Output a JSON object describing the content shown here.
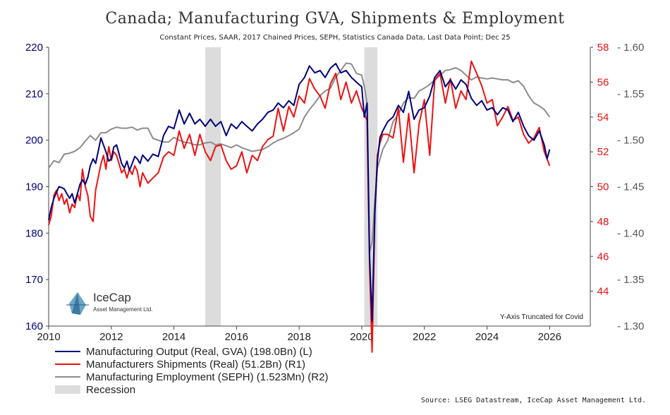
{
  "chart_data": {
    "type": "line",
    "title": "Canada; Manufacturing GVA, Shipments & Employment",
    "subtitle": "Constant Prices, SAAR, 2017 Chained Prices, SEPH, Statistics Canada Data, Last Data Point; Dec 25",
    "annotation": "Y-Axis Truncated for Covid",
    "source": "Source: LSEG Datastream, IceCap Asset Management Ltd.",
    "logo": {
      "name": "IceCap",
      "tagline": "Asset Management Ltd."
    },
    "x_range": [
      2010,
      2027.3
    ],
    "x_ticks": [
      "2010",
      "2012",
      "2014",
      "2016",
      "2018",
      "2020",
      "2022",
      "2024",
      "2026"
    ],
    "axes": {
      "left": {
        "range": [
          160,
          220
        ],
        "ticks": [
          "160",
          "170",
          "180",
          "190",
          "200",
          "210",
          "220"
        ]
      },
      "right1": {
        "range": [
          42,
          58
        ],
        "ticks": [
          "44",
          "46",
          "48",
          "50",
          "52",
          "54",
          "56",
          "58"
        ]
      },
      "right2": {
        "range": [
          1.3,
          1.6
        ],
        "ticks": [
          "- 1.30",
          "- 1.35",
          "- 1.40",
          "- 1.45",
          "- 1.50",
          "- 1.55",
          "- 1.60"
        ]
      }
    },
    "recessions": [
      [
        2015.0,
        2015.5
      ],
      [
        2020.08,
        2020.5
      ]
    ],
    "colors": {
      "output": "#00007a",
      "shipments": "#ee1111",
      "employment": "#8c8c8c",
      "recession": "#dcdcdc"
    },
    "legend": [
      "Manufacturing Output (Real, GVA) (198.0Bn) (L)",
      "Manufacturers Shipments (Real) (51.2Bn) (R1)",
      "Manufacturing Employment (SEPH) (1.523Mn) (R2)",
      "Recession"
    ],
    "series": [
      {
        "name": "Manufacturing Output (Real, GVA)",
        "axis": "left",
        "x": [
          2010.0,
          2010.08,
          2010.17,
          2010.25,
          2010.33,
          2010.42,
          2010.5,
          2010.58,
          2010.67,
          2010.75,
          2010.83,
          2010.92,
          2011.0,
          2011.08,
          2011.17,
          2011.25,
          2011.33,
          2011.42,
          2011.5,
          2011.58,
          2011.67,
          2011.75,
          2011.83,
          2011.92,
          2012.0,
          2012.08,
          2012.17,
          2012.25,
          2012.33,
          2012.42,
          2012.5,
          2012.58,
          2012.67,
          2012.75,
          2012.83,
          2012.92,
          2013.0,
          2013.17,
          2013.33,
          2013.5,
          2013.67,
          2013.83,
          2014.0,
          2014.17,
          2014.33,
          2014.5,
          2014.67,
          2014.83,
          2015.0,
          2015.17,
          2015.33,
          2015.5,
          2015.67,
          2015.83,
          2016.0,
          2016.17,
          2016.33,
          2016.5,
          2016.67,
          2016.83,
          2017.0,
          2017.17,
          2017.33,
          2017.5,
          2017.67,
          2017.83,
          2018.0,
          2018.17,
          2018.33,
          2018.5,
          2018.67,
          2018.83,
          2019.0,
          2019.17,
          2019.33,
          2019.5,
          2019.67,
          2019.83,
          2020.0,
          2020.08,
          2020.17,
          2020.25,
          2020.33,
          2020.42,
          2020.5,
          2020.58,
          2020.67,
          2020.83,
          2021.0,
          2021.17,
          2021.33,
          2021.5,
          2021.67,
          2021.83,
          2022.0,
          2022.17,
          2022.33,
          2022.5,
          2022.67,
          2022.83,
          2023.0,
          2023.17,
          2023.33,
          2023.5,
          2023.67,
          2023.83,
          2024.0,
          2024.17,
          2024.33,
          2024.5,
          2024.67,
          2024.83,
          2025.0,
          2025.17,
          2025.33,
          2025.5,
          2025.67,
          2025.83,
          2025.92,
          2026.0
        ],
        "values": [
          182.8,
          185.5,
          187.5,
          188.8,
          190.0,
          189.8,
          189.5,
          188.5,
          187.5,
          188.5,
          186.5,
          188.5,
          190.5,
          191.5,
          190.5,
          192.0,
          194.5,
          196.0,
          195.0,
          197.5,
          200.5,
          199.0,
          197.5,
          195.5,
          196.0,
          198.5,
          199.0,
          197.0,
          195.0,
          194.0,
          195.5,
          193.5,
          195.0,
          196.5,
          196.0,
          195.0,
          196.8,
          195.5,
          197.0,
          196.5,
          201.0,
          203.0,
          202.5,
          206.5,
          203.5,
          205.8,
          203.5,
          204.5,
          203.0,
          204.5,
          203.0,
          204.0,
          201.0,
          203.5,
          202.5,
          204.0,
          203.0,
          202.0,
          203.5,
          204.5,
          206.0,
          206.5,
          208.0,
          207.0,
          208.5,
          207.5,
          212.0,
          213.5,
          216.0,
          214.5,
          215.0,
          213.5,
          215.5,
          216.5,
          214.5,
          215.0,
          213.5,
          212.5,
          211.5,
          205.0,
          208.0,
          175.0,
          161.0,
          185.0,
          195.5,
          200.5,
          202.0,
          204.0,
          205.0,
          207.5,
          206.0,
          210.5,
          204.5,
          206.5,
          207.0,
          209.5,
          213.5,
          215.0,
          211.5,
          213.0,
          211.0,
          213.0,
          212.0,
          209.0,
          207.5,
          208.5,
          206.5,
          207.0,
          205.5,
          207.0,
          206.5,
          204.0,
          206.0,
          203.0,
          201.0,
          200.0,
          202.0,
          199.0,
          196.0,
          198.0
        ]
      },
      {
        "name": "Manufacturers Shipments (Real)",
        "axis": "right1",
        "x": [
          2010.0,
          2010.08,
          2010.17,
          2010.25,
          2010.33,
          2010.42,
          2010.5,
          2010.58,
          2010.67,
          2010.75,
          2010.83,
          2010.92,
          2011.0,
          2011.08,
          2011.17,
          2011.25,
          2011.33,
          2011.42,
          2011.5,
          2011.58,
          2011.67,
          2011.75,
          2011.83,
          2011.92,
          2012.0,
          2012.08,
          2012.17,
          2012.25,
          2012.33,
          2012.42,
          2012.5,
          2012.58,
          2012.67,
          2012.75,
          2012.83,
          2012.92,
          2013.0,
          2013.17,
          2013.33,
          2013.5,
          2013.67,
          2013.83,
          2014.0,
          2014.17,
          2014.33,
          2014.5,
          2014.67,
          2014.83,
          2015.0,
          2015.17,
          2015.33,
          2015.5,
          2015.67,
          2015.83,
          2016.0,
          2016.17,
          2016.33,
          2016.5,
          2016.67,
          2016.83,
          2017.0,
          2017.17,
          2017.33,
          2017.5,
          2017.67,
          2017.83,
          2018.0,
          2018.17,
          2018.33,
          2018.5,
          2018.67,
          2018.83,
          2019.0,
          2019.17,
          2019.33,
          2019.5,
          2019.67,
          2019.83,
          2020.0,
          2020.08,
          2020.17,
          2020.25,
          2020.33,
          2020.42,
          2020.5,
          2020.58,
          2020.67,
          2020.83,
          2021.0,
          2021.17,
          2021.33,
          2021.5,
          2021.67,
          2021.83,
          2022.0,
          2022.17,
          2022.33,
          2022.5,
          2022.67,
          2022.83,
          2023.0,
          2023.17,
          2023.33,
          2023.5,
          2023.67,
          2023.83,
          2024.0,
          2024.17,
          2024.33,
          2024.5,
          2024.67,
          2024.83,
          2025.0,
          2025.17,
          2025.33,
          2025.5,
          2025.67,
          2025.83,
          2025.92,
          2026.0
        ],
        "values": [
          47.8,
          48.3,
          49.5,
          49.8,
          49.2,
          49.6,
          49.0,
          49.3,
          48.5,
          49.0,
          48.8,
          49.6,
          49.2,
          51.0,
          50.0,
          49.5,
          48.3,
          48.0,
          49.8,
          50.5,
          51.3,
          51.8,
          51.0,
          52.3,
          51.5,
          52.0,
          51.8,
          51.3,
          50.8,
          51.0,
          50.5,
          51.0,
          50.7,
          51.2,
          50.9,
          50.0,
          50.8,
          50.2,
          50.5,
          50.8,
          51.7,
          52.0,
          51.8,
          53.2,
          52.2,
          53.0,
          51.8,
          53.0,
          52.0,
          51.5,
          52.3,
          52.4,
          51.5,
          51.0,
          51.2,
          52.0,
          50.8,
          51.8,
          51.5,
          52.3,
          52.7,
          52.9,
          54.5,
          53.2,
          54.6,
          54.0,
          55.2,
          54.8,
          56.2,
          55.6,
          55.2,
          54.5,
          55.9,
          56.5,
          55.0,
          56.0,
          54.8,
          55.5,
          54.5,
          54.2,
          53.8,
          45.5,
          40.5,
          48.5,
          51.8,
          52.5,
          53.0,
          53.0,
          52.8,
          54.5,
          51.4,
          54.2,
          50.8,
          53.6,
          55.0,
          51.8,
          56.1,
          56.5,
          54.8,
          56.2,
          54.5,
          55.5,
          55.0,
          57.2,
          56.5,
          55.8,
          54.8,
          55.0,
          53.5,
          54.0,
          54.6,
          53.8,
          54.0,
          53.0,
          52.5,
          52.8,
          53.4,
          52.0,
          51.6,
          51.2
        ]
      },
      {
        "name": "Manufacturing Employment (SEPH)",
        "axis": "right2",
        "x": [
          2010.0,
          2010.17,
          2010.33,
          2010.5,
          2010.67,
          2010.83,
          2011.0,
          2011.17,
          2011.33,
          2011.5,
          2011.67,
          2011.83,
          2012.0,
          2012.17,
          2012.33,
          2012.5,
          2012.67,
          2012.83,
          2013.0,
          2013.17,
          2013.33,
          2013.5,
          2013.67,
          2013.83,
          2014.0,
          2014.17,
          2014.33,
          2014.5,
          2014.67,
          2014.83,
          2015.0,
          2015.17,
          2015.33,
          2015.5,
          2015.67,
          2015.83,
          2016.0,
          2016.17,
          2016.33,
          2016.5,
          2016.67,
          2016.83,
          2017.0,
          2017.17,
          2017.33,
          2017.5,
          2017.67,
          2017.83,
          2018.0,
          2018.17,
          2018.33,
          2018.5,
          2018.67,
          2018.83,
          2019.0,
          2019.17,
          2019.33,
          2019.5,
          2019.67,
          2019.83,
          2020.0,
          2020.08,
          2020.17,
          2020.25,
          2020.33,
          2020.42,
          2020.5,
          2020.67,
          2020.83,
          2021.0,
          2021.17,
          2021.33,
          2021.5,
          2021.67,
          2021.83,
          2022.0,
          2022.17,
          2022.33,
          2022.5,
          2022.67,
          2022.83,
          2023.0,
          2023.17,
          2023.33,
          2023.5,
          2023.67,
          2023.83,
          2024.0,
          2024.17,
          2024.33,
          2024.5,
          2024.67,
          2024.83,
          2025.0,
          2025.17,
          2025.33,
          2025.5,
          2025.67,
          2025.83,
          2026.0
        ],
        "values": [
          1.47,
          1.478,
          1.476,
          1.485,
          1.486,
          1.488,
          1.492,
          1.499,
          1.505,
          1.5,
          1.508,
          1.508,
          1.512,
          1.514,
          1.513,
          1.513,
          1.514,
          1.511,
          1.513,
          1.513,
          1.502,
          1.5,
          1.498,
          1.498,
          1.503,
          1.5,
          1.498,
          1.497,
          1.495,
          1.495,
          1.497,
          1.498,
          1.495,
          1.496,
          1.494,
          1.492,
          1.495,
          1.492,
          1.49,
          1.488,
          1.489,
          1.49,
          1.493,
          1.497,
          1.5,
          1.502,
          1.505,
          1.508,
          1.512,
          1.525,
          1.533,
          1.54,
          1.548,
          1.553,
          1.556,
          1.568,
          1.575,
          1.583,
          1.582,
          1.572,
          1.57,
          1.558,
          1.54,
          1.38,
          1.39,
          1.435,
          1.47,
          1.49,
          1.5,
          1.52,
          1.528,
          1.54,
          1.546,
          1.545,
          1.553,
          1.556,
          1.56,
          1.565,
          1.57,
          1.575,
          1.576,
          1.578,
          1.575,
          1.57,
          1.565,
          1.568,
          1.567,
          1.566,
          1.567,
          1.566,
          1.565,
          1.565,
          1.562,
          1.564,
          1.558,
          1.548,
          1.54,
          1.537,
          1.533,
          1.525
        ]
      }
    ]
  }
}
